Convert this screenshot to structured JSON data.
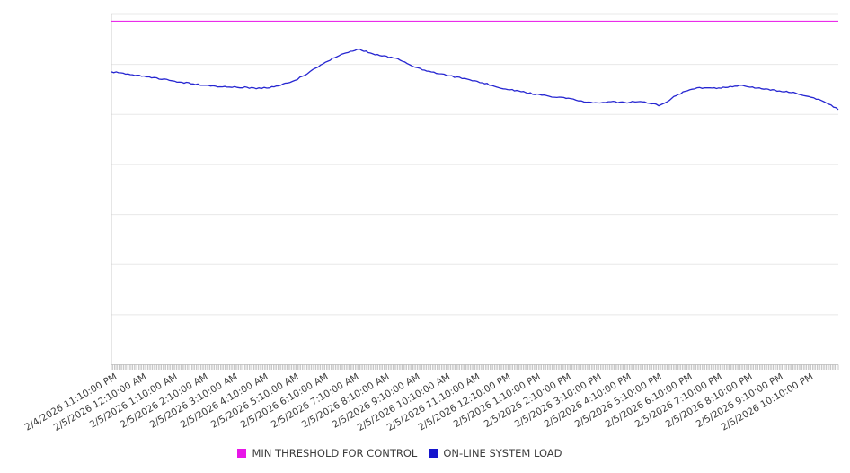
{
  "chart_data": {
    "type": "line",
    "title": "",
    "xlabel": "",
    "ylabel": "",
    "grid": "horizontal",
    "y_axis_labels_visible": false,
    "ylim": [
      0,
      100
    ],
    "x_hours_span": 24,
    "x_minor_ticks_per_hour": 20,
    "legend_position": "bottom-center",
    "x_tick_labels": [
      "2/4/2026 11:10:00 PM",
      "2/5/2026 12:10:00 AM",
      "2/5/2026 1:10:00 AM",
      "2/5/2026 2:10:00 AM",
      "2/5/2026 3:10:00 AM",
      "2/5/2026 4:10:00 AM",
      "2/5/2026 5:10:00 AM",
      "2/5/2026 6:10:00 AM",
      "2/5/2026 7:10:00 AM",
      "2/5/2026 8:10:00 AM",
      "2/5/2026 9:10:00 AM",
      "2/5/2026 10:10:00 AM",
      "2/5/2026 11:10:00 AM",
      "2/5/2026 12:10:00 PM",
      "2/5/2026 1:10:00 PM",
      "2/5/2026 2:10:00 PM",
      "2/5/2026 3:10:00 PM",
      "2/5/2026 4:10:00 PM",
      "2/5/2026 5:10:00 PM",
      "2/5/2026 6:10:00 PM",
      "2/5/2026 7:10:00 PM",
      "2/5/2026 8:10:00 PM",
      "2/5/2026 9:10:00 PM",
      "2/5/2026 10:10:00 PM"
    ],
    "series": [
      {
        "name": "MIN THRESHOLD FOR CONTROL",
        "type": "threshold",
        "color": "#e816e8",
        "value": 98.0
      },
      {
        "name": "ON-LINE SYSTEM LOAD",
        "type": "line",
        "color": "#1414cd",
        "points_format": [
          "hour_offset",
          "value_0_100"
        ],
        "points": [
          [
            0.0,
            83.6
          ],
          [
            0.47,
            83.1
          ],
          [
            1.07,
            82.3
          ],
          [
            1.66,
            81.5
          ],
          [
            2.25,
            80.7
          ],
          [
            2.85,
            80.0
          ],
          [
            3.44,
            79.4
          ],
          [
            3.89,
            79.2
          ],
          [
            4.33,
            79.2
          ],
          [
            4.78,
            78.9
          ],
          [
            5.22,
            79.2
          ],
          [
            5.52,
            79.7
          ],
          [
            5.81,
            80.5
          ],
          [
            6.14,
            81.5
          ],
          [
            6.56,
            83.6
          ],
          [
            6.91,
            85.6
          ],
          [
            7.3,
            87.4
          ],
          [
            7.59,
            88.7
          ],
          [
            7.89,
            89.5
          ],
          [
            8.19,
            90.0
          ],
          [
            8.48,
            89.2
          ],
          [
            8.78,
            88.4
          ],
          [
            9.08,
            87.9
          ],
          [
            9.46,
            87.4
          ],
          [
            9.76,
            85.9
          ],
          [
            10.12,
            84.6
          ],
          [
            10.56,
            83.6
          ],
          [
            11.24,
            82.3
          ],
          [
            11.75,
            81.5
          ],
          [
            12.25,
            80.5
          ],
          [
            12.79,
            79.2
          ],
          [
            13.23,
            78.4
          ],
          [
            13.68,
            77.7
          ],
          [
            14.21,
            76.9
          ],
          [
            14.71,
            76.4
          ],
          [
            15.16,
            75.9
          ],
          [
            15.6,
            75.1
          ],
          [
            16.05,
            74.8
          ],
          [
            16.49,
            75.1
          ],
          [
            16.94,
            74.8
          ],
          [
            17.38,
            75.1
          ],
          [
            17.83,
            74.6
          ],
          [
            18.07,
            74.1
          ],
          [
            18.27,
            74.6
          ],
          [
            18.57,
            76.4
          ],
          [
            18.87,
            77.7
          ],
          [
            19.25,
            78.9
          ],
          [
            19.76,
            79.2
          ],
          [
            20.05,
            78.9
          ],
          [
            20.35,
            79.2
          ],
          [
            20.74,
            79.7
          ],
          [
            21.09,
            79.2
          ],
          [
            21.54,
            78.7
          ],
          [
            21.98,
            78.2
          ],
          [
            22.52,
            77.7
          ],
          [
            23.02,
            76.6
          ],
          [
            23.52,
            75.1
          ],
          [
            23.76,
            74.1
          ],
          [
            24.0,
            72.8
          ]
        ]
      }
    ]
  }
}
